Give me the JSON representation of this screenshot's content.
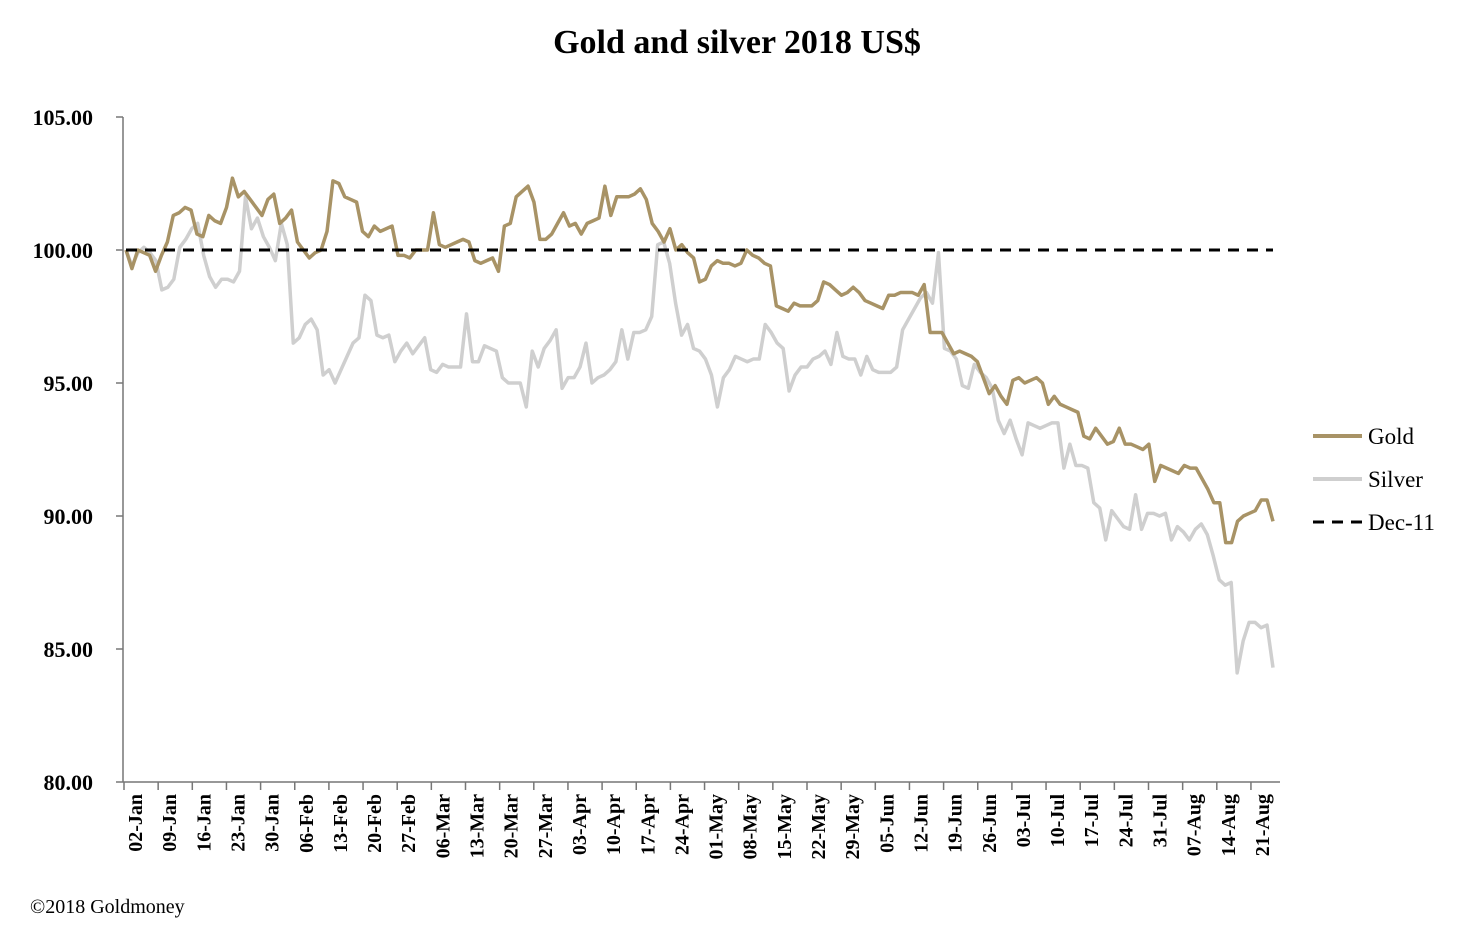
{
  "chart_data": {
    "type": "line",
    "title": "Gold and silver 2018  US$",
    "copyright": "©2018 Goldmoney",
    "ylim": [
      80,
      105
    ],
    "yticks": [
      "105.00",
      "100.00",
      "95.00",
      "90.00",
      "85.00",
      "80.00"
    ],
    "yticks_values": [
      105,
      100,
      95,
      90,
      85,
      80
    ],
    "x_tick_labels": [
      "02-Jan",
      "09-Jan",
      "16-Jan",
      "23-Jan",
      "30-Jan",
      "06-Feb",
      "13-Feb",
      "20-Feb",
      "27-Feb",
      "06-Mar",
      "13-Mar",
      "20-Mar",
      "27-Mar",
      "03-Apr",
      "10-Apr",
      "17-Apr",
      "24-Apr",
      "01-May",
      "08-May",
      "15-May",
      "22-May",
      "29-May",
      "05-Jun",
      "12-Jun",
      "19-Jun",
      "26-Jun",
      "03-Jul",
      "10-Jul",
      "17-Jul",
      "24-Jul",
      "31-Jul",
      "07-Aug",
      "14-Aug",
      "21-Aug"
    ],
    "legend_position": "right",
    "grid": false,
    "colors": {
      "gold": "#a89366",
      "silver": "#cfcfcf",
      "baseline": "#000000"
    },
    "series": [
      {
        "name": "Gold",
        "values": [
          100.0,
          99.3,
          100.0,
          99.9,
          99.8,
          99.2,
          99.8,
          100.3,
          101.3,
          101.4,
          101.6,
          101.5,
          100.6,
          100.5,
          101.3,
          101.1,
          101.0,
          101.6,
          102.7,
          102.0,
          102.2,
          101.9,
          101.6,
          101.3,
          101.9,
          102.1,
          101.0,
          101.2,
          101.5,
          100.3,
          100.0,
          99.7,
          99.9,
          100.0,
          100.7,
          102.6,
          102.5,
          102.0,
          101.9,
          101.8,
          100.7,
          100.5,
          100.9,
          100.7,
          100.8,
          100.9,
          99.8,
          99.8,
          99.7,
          100.0,
          100.0,
          100.0,
          101.4,
          100.2,
          100.1,
          100.2,
          100.3,
          100.4,
          100.3,
          99.6,
          99.5,
          99.6,
          99.7,
          99.2,
          100.9,
          101.0,
          102.0,
          102.2,
          102.4,
          101.8,
          100.4,
          100.4,
          100.6,
          101.0,
          101.4,
          100.9,
          101.0,
          100.6,
          101.0,
          101.1,
          101.2,
          102.4,
          101.3,
          102.0,
          102.0,
          102.0,
          102.1,
          102.3,
          101.9,
          101.0,
          100.7,
          100.3,
          100.8,
          100.0,
          100.2,
          99.9,
          99.7,
          98.8,
          98.9,
          99.4,
          99.6,
          99.5,
          99.5,
          99.4,
          99.5,
          100.0,
          99.8,
          99.7,
          99.5,
          99.4,
          97.9,
          97.8,
          97.7,
          98.0,
          97.9,
          97.9,
          97.9,
          98.1,
          98.8,
          98.7,
          98.5,
          98.3,
          98.4,
          98.6,
          98.4,
          98.1,
          98.0,
          97.9,
          97.8,
          98.3,
          98.3,
          98.4,
          98.4,
          98.4,
          98.3,
          98.7,
          96.9,
          96.9,
          96.9,
          96.5,
          96.1,
          96.2,
          96.1,
          96.0,
          95.8,
          95.2,
          94.6,
          94.9,
          94.5,
          94.2,
          95.1,
          95.2,
          95.0,
          95.1,
          95.2,
          95.0,
          94.2,
          94.5,
          94.2,
          94.1,
          94.0,
          93.9,
          93.0,
          92.9,
          93.3,
          93.0,
          92.7,
          92.8,
          93.3,
          92.7,
          92.7,
          92.6,
          92.5,
          92.7,
          91.3,
          91.9,
          91.8,
          91.7,
          91.6,
          91.9,
          91.8,
          91.8,
          91.4,
          91.0,
          90.5,
          90.5,
          89.0,
          89.0,
          89.8,
          90.0,
          90.1,
          90.2,
          90.6,
          90.6,
          89.8
        ]
      },
      {
        "name": "Silver",
        "values": [
          100.0,
          99.4,
          99.9,
          100.1,
          99.9,
          99.6,
          98.5,
          98.6,
          98.9,
          100.1,
          100.4,
          100.8,
          101.0,
          99.8,
          99.0,
          98.6,
          98.9,
          98.9,
          98.8,
          99.2,
          102.0,
          100.8,
          101.2,
          100.5,
          100.1,
          99.6,
          101.0,
          100.2,
          96.5,
          96.7,
          97.2,
          97.4,
          97.0,
          95.3,
          95.5,
          95.0,
          95.5,
          96.0,
          96.5,
          96.7,
          98.3,
          98.1,
          96.8,
          96.7,
          96.8,
          95.8,
          96.2,
          96.5,
          96.1,
          96.4,
          96.7,
          95.5,
          95.4,
          95.7,
          95.6,
          95.6,
          95.6,
          97.6,
          95.8,
          95.8,
          96.4,
          96.3,
          96.2,
          95.2,
          95.0,
          95.0,
          95.0,
          94.1,
          96.2,
          95.6,
          96.3,
          96.6,
          97.0,
          94.8,
          95.2,
          95.2,
          95.6,
          96.5,
          95.0,
          95.2,
          95.3,
          95.5,
          95.8,
          97.0,
          95.9,
          96.9,
          96.9,
          97.0,
          97.5,
          100.2,
          100.3,
          99.5,
          98.0,
          96.8,
          97.2,
          96.3,
          96.2,
          95.9,
          95.3,
          94.1,
          95.2,
          95.5,
          96.0,
          95.9,
          95.8,
          95.9,
          95.9,
          97.2,
          96.9,
          96.5,
          96.3,
          94.7,
          95.3,
          95.6,
          95.6,
          95.9,
          96.0,
          96.2,
          95.7,
          96.9,
          96.0,
          95.9,
          95.9,
          95.3,
          96.0,
          95.5,
          95.4,
          95.4,
          95.4,
          95.6,
          97.0,
          97.4,
          97.8,
          98.2,
          98.4,
          98.0,
          99.9,
          96.3,
          96.2,
          95.9,
          94.9,
          94.8,
          95.7,
          95.4,
          95.2,
          94.8,
          93.6,
          93.1,
          93.6,
          92.9,
          92.3,
          93.5,
          93.4,
          93.3,
          93.4,
          93.5,
          93.5,
          91.8,
          92.7,
          91.9,
          91.9,
          91.8,
          90.5,
          90.3,
          89.1,
          90.2,
          89.9,
          89.6,
          89.5,
          90.8,
          89.5,
          90.1,
          90.1,
          90.0,
          90.1,
          89.1,
          89.6,
          89.4,
          89.1,
          89.5,
          89.7,
          89.3,
          88.5,
          87.6,
          87.4,
          87.5,
          84.1,
          85.3,
          86.0,
          86.0,
          85.8,
          85.9,
          84.3
        ]
      },
      {
        "name": "Dec-11",
        "values": [
          100,
          100
        ]
      }
    ]
  }
}
